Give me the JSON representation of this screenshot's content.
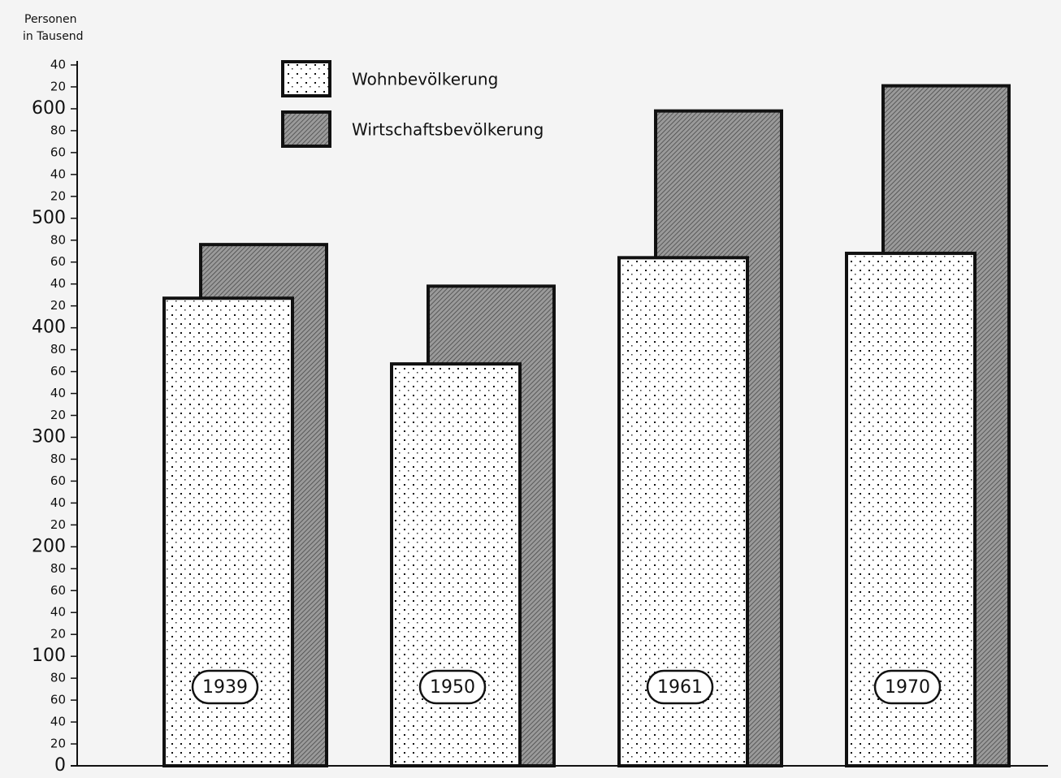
{
  "chart_data": {
    "type": "bar",
    "ylabel": [
      "Personen",
      "in Tausend"
    ],
    "categories": [
      "1939",
      "1950",
      "1961",
      "1970"
    ],
    "series": [
      {
        "name": "Wohnbevölkerung",
        "color": "#ffffff",
        "pattern": "dots",
        "values": [
          427,
          367,
          464,
          468
        ]
      },
      {
        "name": "Wirtschaftsbevölkerung",
        "color": "#8a8a8a",
        "pattern": "hatch",
        "values": [
          476,
          438,
          598,
          621
        ]
      }
    ],
    "ylim": [
      0,
      640
    ],
    "yticks": [
      0,
      {
        "value": 20,
        "label": "20"
      },
      {
        "value": 40,
        "label": "40"
      },
      {
        "value": 60,
        "label": "60"
      },
      {
        "value": 80,
        "label": "80"
      },
      100,
      {
        "value": 120,
        "label": "20"
      },
      {
        "value": 140,
        "label": "40"
      },
      {
        "value": 160,
        "label": "60"
      },
      {
        "value": 180,
        "label": "80"
      },
      200,
      {
        "value": 220,
        "label": "20"
      },
      {
        "value": 240,
        "label": "40"
      },
      {
        "value": 260,
        "label": "60"
      },
      {
        "value": 280,
        "label": "80"
      },
      300,
      {
        "value": 320,
        "label": "20"
      },
      {
        "value": 340,
        "label": "40"
      },
      {
        "value": 360,
        "label": "60"
      },
      {
        "value": 380,
        "label": "80"
      },
      400,
      {
        "value": 420,
        "label": "20"
      },
      {
        "value": 440,
        "label": "40"
      },
      {
        "value": 460,
        "label": "60"
      },
      {
        "value": 480,
        "label": "80"
      },
      500,
      {
        "value": 520,
        "label": "20"
      },
      {
        "value": 540,
        "label": "40"
      },
      {
        "value": 560,
        "label": "60"
      },
      {
        "value": 580,
        "label": "80"
      },
      600,
      {
        "value": 620,
        "label": "20"
      },
      {
        "value": 640,
        "label": "40"
      }
    ],
    "legend": "top-left"
  }
}
